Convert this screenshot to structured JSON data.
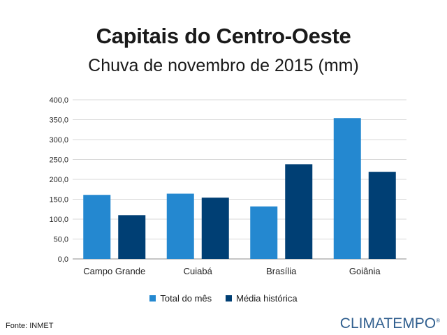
{
  "title": "Capitais do Centro-Oeste",
  "subtitle": "Chuva de novembro de 2015 (mm)",
  "source": "Fonte: INMET",
  "brand": "CLIMATEMPO",
  "colors": {
    "series1": "#2488d0",
    "series2": "#003f74",
    "grid": "#d9d9d9",
    "axis": "#8c8c8c"
  },
  "chart_data": {
    "type": "bar",
    "title": "Capitais do Centro-Oeste",
    "subtitle": "Chuva de novembro de 2015 (mm)",
    "categories": [
      "Campo Grande",
      "Cuiabá",
      "Brasília",
      "Goiânia"
    ],
    "series": [
      {
        "name": "Total do mês",
        "values": [
          161,
          164,
          132,
          354
        ]
      },
      {
        "name": "Média histórica",
        "values": [
          110,
          154,
          238,
          219
        ]
      }
    ],
    "ylim": [
      0,
      400
    ],
    "yticks": [
      "0,0",
      "50,0",
      "100,0",
      "150,0",
      "200,0",
      "250,0",
      "300,0",
      "350,0",
      "400,0"
    ],
    "grid": true,
    "legend": "bottom"
  }
}
